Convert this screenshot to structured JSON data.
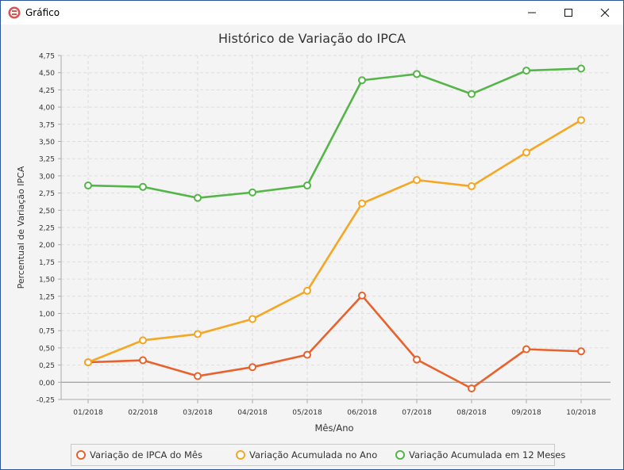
{
  "window": {
    "title": "Gráfico"
  },
  "colors": {
    "series1": "#e8622e",
    "series2": "#f5a623",
    "series3": "#54b548"
  },
  "chart_data": {
    "type": "line",
    "title": "Histórico de Variação do IPCA",
    "xlabel": "Mês/Ano",
    "ylabel": "Percentual de Variação IPCA",
    "categories": [
      "01/2018",
      "02/2018",
      "03/2018",
      "04/2018",
      "05/2018",
      "06/2018",
      "07/2018",
      "08/2018",
      "09/2018",
      "10/2018"
    ],
    "ylim": [
      -0.25,
      4.75
    ],
    "yticks": [
      "4,75",
      "4,50",
      "4,25",
      "4,00",
      "3,75",
      "3,50",
      "3,25",
      "3,00",
      "2,75",
      "2,50",
      "2,25",
      "2,00",
      "1,75",
      "1,50",
      "1,25",
      "1,00",
      "0,75",
      "0,50",
      "0,25",
      "0,00",
      "-0,25"
    ],
    "grid": true,
    "legend_position": "bottom",
    "series": [
      {
        "name": "Variação de IPCA do Mês",
        "values": [
          0.29,
          0.32,
          0.09,
          0.22,
          0.4,
          1.26,
          0.33,
          -0.09,
          0.48,
          0.45
        ]
      },
      {
        "name": "Variação Acumulada no Ano",
        "values": [
          0.29,
          0.61,
          0.7,
          0.92,
          1.33,
          2.6,
          2.94,
          2.85,
          3.34,
          3.81
        ]
      },
      {
        "name": "Variação Acumulada em 12 Meses",
        "values": [
          2.86,
          2.84,
          2.68,
          2.76,
          2.86,
          4.39,
          4.48,
          4.19,
          4.53,
          4.56
        ]
      }
    ]
  }
}
